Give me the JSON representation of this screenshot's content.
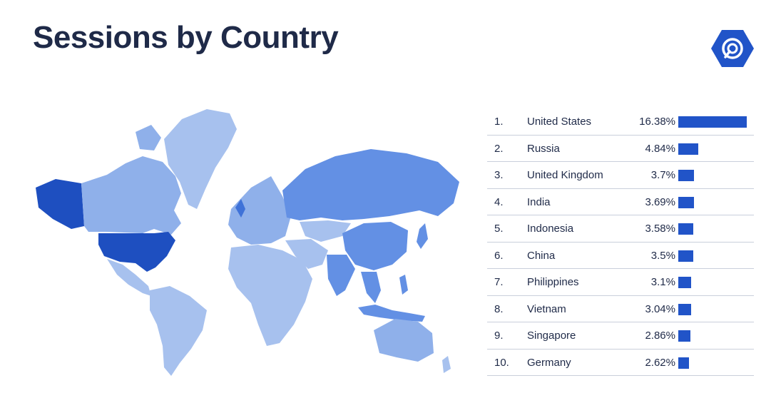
{
  "title": "Sessions by Country",
  "colors": {
    "bar": "#2154c8",
    "title": "#1f2a48",
    "map_low": "#a7c1ee",
    "map_mid": "#6390e4",
    "map_high": "#1e4fc0"
  },
  "logo_icon": "radar-signal-hexagon-icon",
  "chart_data": {
    "type": "bar",
    "orientation": "horizontal",
    "ranks": [
      "1.",
      "2.",
      "3.",
      "4.",
      "5.",
      "6.",
      "7.",
      "8.",
      "9.",
      "10."
    ],
    "categories": [
      "United States",
      "Russia",
      "United Kingdom",
      "India",
      "Indonesia",
      "China",
      "Philippines",
      "Vietnam",
      "Singapore",
      "Germany"
    ],
    "value_labels": [
      "16.38%",
      "4.84%",
      "3.7%",
      "3.69%",
      "3.58%",
      "3.5%",
      "3.1%",
      "3.04%",
      "2.86%",
      "2.62%"
    ],
    "values": [
      16.38,
      4.84,
      3.7,
      3.69,
      3.58,
      3.5,
      3.1,
      3.04,
      2.86,
      2.62
    ],
    "unit": "%"
  }
}
